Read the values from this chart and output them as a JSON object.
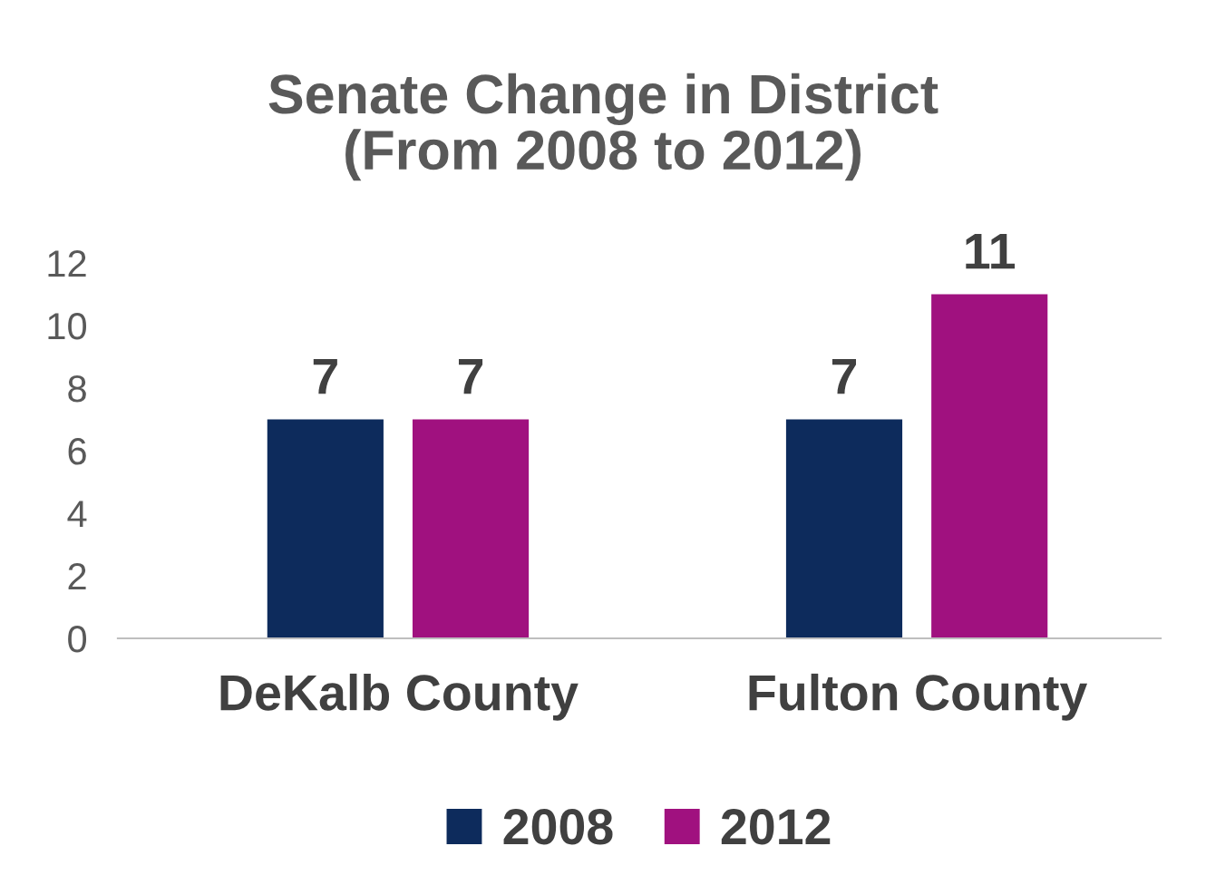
{
  "chart_data": {
    "type": "bar",
    "title": "Senate Change in District\n(From 2008 to 2012)",
    "categories": [
      "DeKalb County",
      "Fulton County"
    ],
    "series": [
      {
        "name": "2008",
        "color": "#0d2b5c",
        "values": [
          7,
          7
        ]
      },
      {
        "name": "2012",
        "color": "#a0117f",
        "values": [
          7,
          11
        ]
      }
    ],
    "ylim": [
      0,
      12
    ],
    "yticks": [
      0,
      2,
      4,
      6,
      8,
      10,
      12
    ],
    "grid": false,
    "legend": "bottom",
    "data_labels": true
  }
}
